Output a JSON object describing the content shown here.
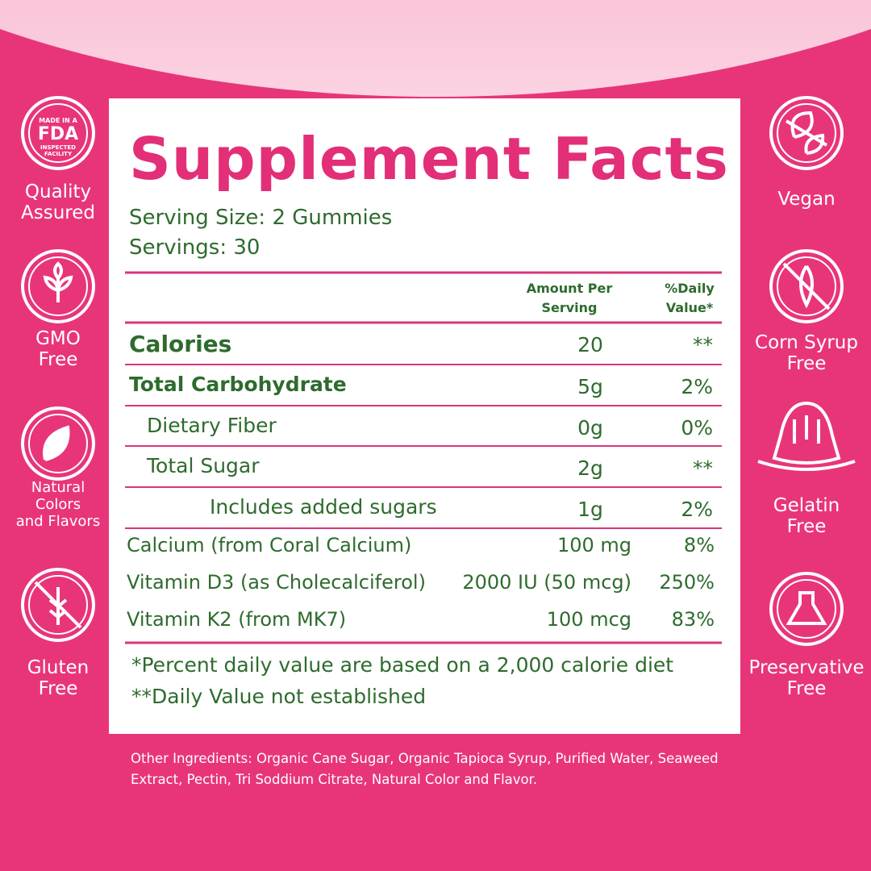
{
  "badges_left": [
    {
      "label": [
        "Quality",
        "Assured"
      ],
      "icon_text": [
        "MADE IN A",
        "FDA",
        "INSPECTED",
        "FACILITY"
      ]
    },
    {
      "label": [
        "GMO",
        "Free"
      ]
    },
    {
      "label": [
        "Natural",
        "Colors",
        "and Flavors"
      ]
    },
    {
      "label": [
        "Gluten",
        "Free"
      ]
    }
  ],
  "badges_right": [
    {
      "label": [
        "Vegan"
      ]
    },
    {
      "label": [
        "Corn Syrup",
        "Free"
      ]
    },
    {
      "label": [
        "Gelatin",
        "Free"
      ]
    },
    {
      "label": [
        "Preservative",
        "Free"
      ]
    }
  ],
  "facts": {
    "title": "Supplement Facts",
    "serving_size_label": "Serving Size:",
    "serving_size": "2 Gummies",
    "servings_label": "Servings:",
    "servings": "30",
    "header_amount": [
      "Amount Per",
      "Serving"
    ],
    "header_daily": [
      "%Daily",
      "Value*"
    ],
    "rows": [
      [
        "Calories",
        "20",
        "**"
      ],
      [
        "Total Carbohydrate",
        "5g",
        "2%"
      ],
      [
        "Dietary Fiber",
        "0g",
        "0%"
      ],
      [
        "Total Sugar",
        "2g",
        "**"
      ],
      [
        "Includes added sugars",
        "1g",
        "2%"
      ]
    ],
    "nutrients": [
      [
        "Calcium (from Coral Calcium)",
        "100 mg",
        "8%"
      ],
      [
        "Vitamin D3 (as Cholecalciferol)",
        "2000 IU (50 mcg)",
        "250%"
      ],
      [
        "Vitamin K2 (from MK7)",
        "100 mcg",
        "83%"
      ]
    ],
    "footnotes": [
      "*Percent daily value are based on a 2,000 calorie diet",
      "**Daily Value not established"
    ]
  },
  "other_ingredients": "Other Ingredients: Organic Cane Sugar, Organic Tapioca Syrup, Purified Water, Seaweed Extract, Pectin, Tri Soddium Citrate, Natural Color and Flavor."
}
